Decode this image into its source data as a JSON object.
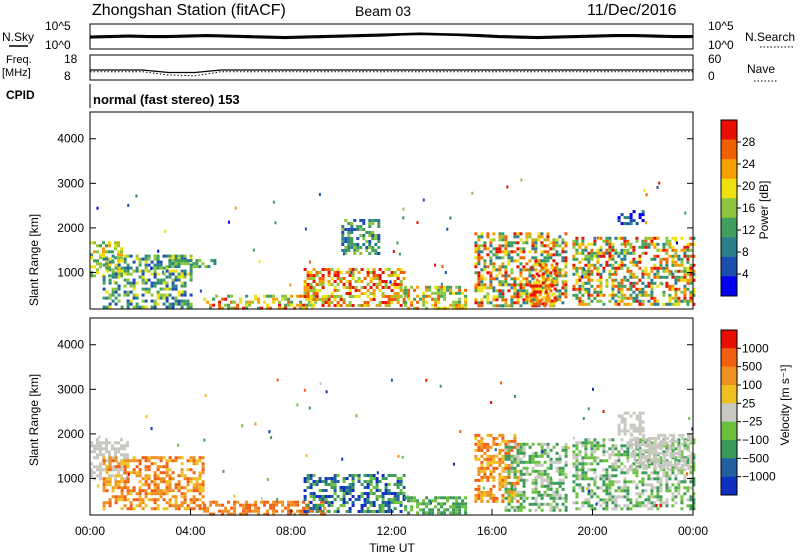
{
  "header": {
    "title": "Zhongshan Station (fitACF)",
    "beam": "Beam 03",
    "date": "11/Dec/2016"
  },
  "chart_data": [
    {
      "type": "line",
      "panel": "noise",
      "left_label": "N.Sky",
      "right_label": "N.Search",
      "left_ticks": [
        "10^5",
        "10^0"
      ],
      "right_ticks": [
        "10^5",
        "10^0"
      ],
      "series": [
        {
          "values_log10": [
            2.5,
            2.6,
            2.7,
            2.6,
            2.6,
            2.7,
            2.8,
            2.7,
            2.6,
            2.5,
            2.4,
            2.5,
            2.6,
            2.7,
            2.8,
            2.9,
            3.0,
            3.1,
            3.0,
            2.9,
            2.8,
            2.6,
            2.5,
            2.4,
            2.5,
            2.6,
            2.7,
            2.8,
            2.8,
            2.7,
            2.6,
            2.6
          ]
        },
        {
          "values_log10": [
            2.2,
            2.3,
            2.4,
            2.3,
            2.3,
            2.4,
            2.5,
            2.4,
            2.3,
            2.2,
            2.1,
            2.2,
            2.3,
            2.4,
            2.5,
            2.6,
            2.8,
            2.9,
            2.8,
            2.7,
            2.5,
            2.3,
            2.2,
            2.1,
            2.2,
            2.3,
            2.4,
            2.5,
            2.5,
            2.4,
            2.3,
            2.3
          ]
        }
      ]
    },
    {
      "type": "line",
      "panel": "frequency",
      "left_label_top": "Freq.",
      "left_label_unit": "[MHz]",
      "right_label": "Nave",
      "left_ticks": [
        "18",
        "8"
      ],
      "right_ticks": [
        "60",
        "0"
      ],
      "freq_mhz": [
        12,
        12,
        12,
        11,
        11,
        12,
        12,
        12,
        12,
        12,
        12,
        12,
        12,
        12,
        12,
        12,
        12,
        12,
        12,
        12,
        12,
        12,
        12,
        12
      ],
      "nave": [
        20,
        20,
        20,
        12,
        10,
        20,
        20,
        20,
        20,
        20,
        20,
        20,
        20,
        20,
        20,
        20,
        20,
        20,
        20,
        20,
        20,
        20,
        20,
        20
      ]
    },
    {
      "type": "text",
      "panel": "cpid",
      "label": "CPID",
      "value": "normal (fast stereo) 153"
    },
    {
      "type": "heatmap",
      "panel": "power",
      "ylabel": "Slant Range [km]",
      "yticks": [
        "4000",
        "3000",
        "2000",
        "1000"
      ],
      "ylim": [
        180,
        4600
      ],
      "xlim_hours": [
        0,
        24
      ],
      "colorbar_label": "Power [dB]",
      "colorbar_ticks": [
        "28",
        "24",
        "20",
        "16",
        "12",
        "8",
        "4"
      ],
      "colors": [
        "#0000ee",
        "#1a4fb0",
        "#2a7f8a",
        "#3f9f5a",
        "#8cc63f",
        "#f0e010",
        "#f5a000",
        "#f06000",
        "#e81000"
      ],
      "regions": [
        {
          "t": [
            0.0,
            1.2
          ],
          "r": [
            900,
            1700
          ],
          "level": [
            3,
            6
          ]
        },
        {
          "t": [
            0.5,
            4.0
          ],
          "r": [
            200,
            1400
          ],
          "level": [
            1,
            5
          ]
        },
        {
          "t": [
            3.0,
            5.0
          ],
          "r": [
            1100,
            1300
          ],
          "level": [
            2,
            4
          ]
        },
        {
          "t": [
            4.5,
            9.0
          ],
          "r": [
            200,
            500
          ],
          "level": [
            3,
            8
          ]
        },
        {
          "t": [
            8.5,
            12.5
          ],
          "r": [
            250,
            1100
          ],
          "level": [
            4,
            8
          ]
        },
        {
          "t": [
            10.0,
            11.5
          ],
          "r": [
            1400,
            2200
          ],
          "level": [
            1,
            4
          ]
        },
        {
          "t": [
            12.5,
            15.0
          ],
          "r": [
            200,
            700
          ],
          "level": [
            3,
            7
          ]
        },
        {
          "t": [
            15.3,
            19.0
          ],
          "r": [
            250,
            1900
          ],
          "level": [
            2,
            8
          ]
        },
        {
          "t": [
            17.5,
            18.5
          ],
          "r": [
            300,
            1200
          ],
          "level": [
            5,
            8
          ]
        },
        {
          "t": [
            19.2,
            24.0
          ],
          "r": [
            300,
            1800
          ],
          "level": [
            2,
            8
          ]
        },
        {
          "t": [
            21.0,
            22.0
          ],
          "r": [
            2100,
            2400
          ],
          "level": [
            0,
            2
          ]
        }
      ]
    },
    {
      "type": "heatmap",
      "panel": "velocity",
      "ylabel": "Slant Range [km]",
      "yticks": [
        "4000",
        "3000",
        "2000",
        "1000"
      ],
      "ylim": [
        180,
        4600
      ],
      "xlim_hours": [
        0,
        24
      ],
      "xticks": [
        "00:00",
        "04:00",
        "08:00",
        "12:00",
        "16:00",
        "20:00",
        "00:00"
      ],
      "xlabel": "Time UT",
      "colorbar_label": "Velocity [m s⁻¹]",
      "colorbar_ticks": [
        "1000",
        "500",
        "100",
        "25",
        "−25",
        "−100",
        "−500",
        "−1000"
      ],
      "colors": [
        "#1030c0",
        "#2060a0",
        "#3a9a5a",
        "#6cc040",
        "#c8c8c0",
        "#f0c020",
        "#f09020",
        "#f06010",
        "#e81000"
      ],
      "regions": [
        {
          "t": [
            0.0,
            1.5
          ],
          "r": [
            1000,
            1900
          ],
          "level": [
            4,
            4
          ]
        },
        {
          "t": [
            0.5,
            4.5
          ],
          "r": [
            300,
            1500
          ],
          "level": [
            5,
            7
          ]
        },
        {
          "t": [
            4.5,
            9.5
          ],
          "r": [
            200,
            500
          ],
          "level": [
            6,
            7
          ]
        },
        {
          "t": [
            8.5,
            12.5
          ],
          "r": [
            250,
            1100
          ],
          "level": [
            0,
            3
          ]
        },
        {
          "t": [
            12.5,
            15.0
          ],
          "r": [
            200,
            600
          ],
          "level": [
            2,
            3
          ]
        },
        {
          "t": [
            15.3,
            17.0
          ],
          "r": [
            500,
            2000
          ],
          "level": [
            5,
            7
          ]
        },
        {
          "t": [
            16.5,
            19.0
          ],
          "r": [
            300,
            1800
          ],
          "level": [
            2,
            4
          ]
        },
        {
          "t": [
            19.2,
            24.0
          ],
          "r": [
            300,
            1900
          ],
          "level": [
            2,
            4
          ]
        },
        {
          "t": [
            21.5,
            24.0
          ],
          "r": [
            1200,
            2000
          ],
          "level": [
            4,
            4
          ]
        },
        {
          "t": [
            21.0,
            22.0
          ],
          "r": [
            2000,
            2500
          ],
          "level": [
            4,
            4
          ]
        }
      ]
    }
  ]
}
